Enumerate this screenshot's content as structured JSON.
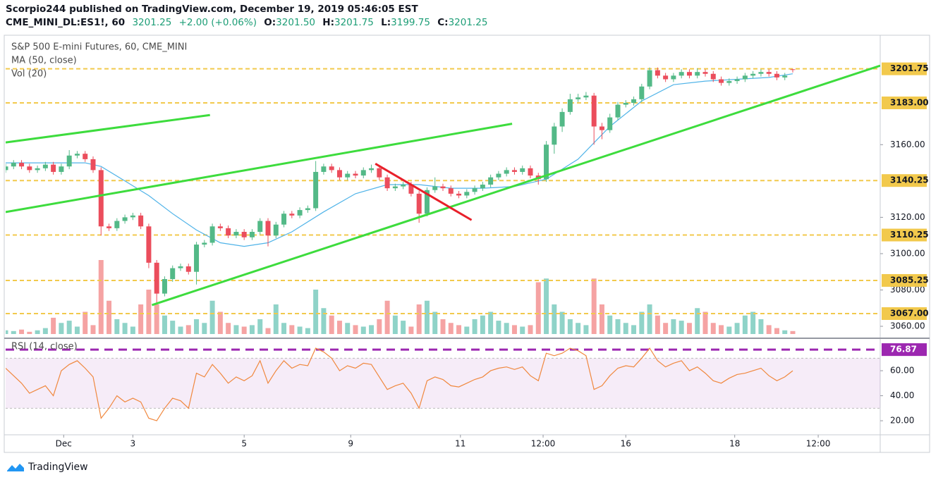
{
  "header": {
    "publisher": "Scorpio244 published on TradingView.com, December 19, 2019 05:46:05 EST",
    "symbol": "CME_MINI_DL:ES1!, 60",
    "last": "3201.25",
    "change": "+2.00 (+0.06%)",
    "ohlc": [
      {
        "label": "O:",
        "value": "3201.50"
      },
      {
        "label": "H:",
        "value": "3201.75"
      },
      {
        "label": "L:",
        "value": "3199.75"
      },
      {
        "label": "C:",
        "value": "3201.25"
      }
    ]
  },
  "footer": {
    "brand": "TradingView"
  },
  "chart_data": [
    {
      "type": "candlestick",
      "title": "S&P 500 E-mini Futures, 60, CME_MINI",
      "xlim": [
        0,
        110
      ],
      "ylim": [
        3054.2,
        3218.3
      ],
      "yticks": [
        {
          "value": 3060,
          "label": "3060.00"
        },
        {
          "value": 3080,
          "label": "3080.00"
        },
        {
          "value": 3100,
          "label": "3100.00"
        },
        {
          "value": 3120,
          "label": "3120.00"
        },
        {
          "value": 3160,
          "label": "3160.00"
        }
      ],
      "up_color": "#53b987",
      "down_color": "#eb4d5c",
      "open": [
        3146,
        3148,
        3150,
        3148,
        3146,
        3147,
        3149,
        3145,
        3148,
        3154,
        3155,
        3152,
        3146,
        3115,
        3114,
        3118,
        3120,
        3121,
        3115,
        3095,
        3078,
        3086,
        3092,
        3093,
        3090,
        3105,
        3106,
        3115,
        3114,
        3110,
        3112,
        3109,
        3112,
        3118,
        3110,
        3116,
        3122,
        3121,
        3124,
        3125,
        3145,
        3148,
        3146,
        3142,
        3144,
        3143,
        3146,
        3147,
        3142,
        3136,
        3137,
        3138,
        3133,
        3122,
        3135,
        3137,
        3136,
        3133,
        3132,
        3134,
        3136,
        3138,
        3142,
        3144,
        3146,
        3145,
        3147,
        3143,
        3141,
        3160,
        3170,
        3178,
        3185,
        3186,
        3187,
        3170,
        3168,
        3175,
        3182,
        3183,
        3185,
        3192,
        3201,
        3198,
        3196,
        3198,
        3200,
        3198,
        3200,
        3199,
        3196,
        3194,
        3195,
        3196,
        3198,
        3199,
        3200,
        3199,
        3197,
        3201.5
      ],
      "high": [
        3149.5,
        3151.5,
        3151.5,
        3149.5,
        3148.5,
        3150.5,
        3150.5,
        3149.5,
        3157,
        3156.5,
        3156.5,
        3153.5,
        3147.5,
        3116.5,
        3119.5,
        3121.5,
        3122.5,
        3122.5,
        3116.5,
        3096.5,
        3087.5,
        3093.5,
        3094.5,
        3094.5,
        3106.5,
        3107.5,
        3116.5,
        3116.5,
        3115.5,
        3113.5,
        3113.5,
        3113.5,
        3119.5,
        3119.5,
        3117.5,
        3123.5,
        3123.5,
        3125.5,
        3126.5,
        3151,
        3149.5,
        3149.5,
        3147.5,
        3145.5,
        3145.5,
        3147.5,
        3149,
        3148.5,
        3143.5,
        3138.5,
        3139.5,
        3139.5,
        3134.5,
        3136.5,
        3142,
        3138.5,
        3137.5,
        3134.5,
        3135.5,
        3137.5,
        3139.5,
        3143.5,
        3145.5,
        3147.5,
        3147.5,
        3148.5,
        3148.5,
        3144.5,
        3162,
        3172,
        3180,
        3188,
        3188,
        3189,
        3188.5,
        3172,
        3177,
        3183.5,
        3184.5,
        3186.5,
        3193.5,
        3202.5,
        3202.5,
        3199.5,
        3199.5,
        3201.5,
        3201.5,
        3202,
        3201.5,
        3200.5,
        3197.5,
        3196.5,
        3197.5,
        3199.5,
        3200.5,
        3201.5,
        3201.5,
        3200.5,
        3199.5,
        3201.75
      ],
      "low": [
        3144.5,
        3146.5,
        3146.5,
        3144.5,
        3144.5,
        3145.5,
        3143.5,
        3143.5,
        3146.5,
        3152.5,
        3150.5,
        3144.5,
        3110,
        3112.5,
        3112.5,
        3116.5,
        3118.5,
        3113.5,
        3092,
        3072,
        3076.5,
        3084.5,
        3090.5,
        3088.5,
        3083,
        3103.5,
        3104.5,
        3112.5,
        3108.5,
        3108.5,
        3107.5,
        3107.5,
        3110.5,
        3104,
        3108.5,
        3114.5,
        3119.5,
        3119.5,
        3122.5,
        3123.5,
        3143.5,
        3144.5,
        3140.5,
        3140.5,
        3141.5,
        3141.5,
        3144.5,
        3140.5,
        3134.5,
        3134.5,
        3135.5,
        3131.5,
        3117,
        3120.5,
        3133.5,
        3134.5,
        3131.5,
        3130.5,
        3130.5,
        3132.5,
        3134.5,
        3136.5,
        3140.5,
        3142.5,
        3143.5,
        3143.5,
        3141.5,
        3138,
        3139.5,
        3155,
        3167,
        3176.5,
        3183.5,
        3184.5,
        3160,
        3163,
        3166.5,
        3173.5,
        3180.5,
        3181.5,
        3183.5,
        3190.5,
        3196.5,
        3194.5,
        3194.5,
        3196.5,
        3196.5,
        3196.5,
        3197.5,
        3194.5,
        3192.5,
        3192.5,
        3193.5,
        3194.5,
        3196.5,
        3197.5,
        3197.5,
        3195.5,
        3195.5,
        3199.75
      ],
      "close": [
        3148,
        3150,
        3148,
        3146,
        3147,
        3149,
        3145,
        3148,
        3154,
        3155,
        3152,
        3146,
        3115,
        3114,
        3118,
        3120,
        3121,
        3115,
        3095,
        3078,
        3086,
        3092,
        3093,
        3090,
        3105,
        3106,
        3115,
        3114,
        3110,
        3112,
        3109,
        3112,
        3118,
        3110,
        3116,
        3122,
        3121,
        3124,
        3125,
        3145,
        3148,
        3146,
        3142,
        3144,
        3143,
        3146,
        3147,
        3142,
        3136,
        3137,
        3138,
        3133,
        3122,
        3135,
        3137,
        3136,
        3133,
        3132,
        3134,
        3136,
        3138,
        3142,
        3144,
        3146,
        3145,
        3147,
        3143,
        3141,
        3160,
        3170,
        3178,
        3185,
        3186,
        3187,
        3170,
        3168,
        3175,
        3182,
        3183,
        3185,
        3192,
        3201,
        3198,
        3196,
        3198,
        3200,
        3198,
        3200,
        3199,
        3196,
        3194,
        3195,
        3196,
        3198,
        3199,
        3200,
        3199,
        3197,
        3198,
        3201.25
      ],
      "ma": {
        "name": "MA (50, close)",
        "color": "#4fb3e8",
        "x": [
          0,
          10,
          12,
          15,
          18,
          21,
          24,
          27,
          30,
          33,
          36,
          40,
          44,
          48,
          52,
          56,
          60,
          64,
          68,
          72,
          76,
          80,
          84,
          88,
          92,
          96,
          99
        ],
        "values": [
          3150,
          3150,
          3148,
          3140,
          3132,
          3122,
          3113,
          3106,
          3104,
          3106,
          3112,
          3123,
          3133,
          3138,
          3138,
          3136,
          3136,
          3137,
          3141,
          3152,
          3170,
          3184,
          3193,
          3195,
          3196,
          3197,
          3199
        ]
      },
      "volume": {
        "name": "Vol (20)",
        "vlim": [
          0,
          100
        ],
        "up_color": "#8fd3c8",
        "down_color": "#f5a3a3",
        "values": [
          5,
          4,
          6,
          3,
          5,
          8,
          22,
          15,
          18,
          10,
          30,
          12,
          100,
          45,
          20,
          15,
          10,
          40,
          60,
          40,
          25,
          18,
          10,
          12,
          20,
          15,
          45,
          30,
          15,
          12,
          10,
          12,
          20,
          8,
          40,
          15,
          12,
          10,
          8,
          60,
          35,
          25,
          18,
          15,
          12,
          10,
          12,
          20,
          45,
          25,
          18,
          10,
          40,
          45,
          30,
          20,
          15,
          12,
          10,
          20,
          25,
          30,
          18,
          15,
          12,
          10,
          12,
          70,
          75,
          40,
          30,
          20,
          15,
          12,
          75,
          40,
          25,
          20,
          15,
          12,
          30,
          40,
          25,
          15,
          20,
          18,
          15,
          35,
          30,
          15,
          12,
          10,
          15,
          25,
          30,
          20,
          12,
          8,
          5,
          4
        ]
      },
      "level_color": "#f2c94c",
      "levels": [
        {
          "value": 3201.75,
          "label": "3201.75"
        },
        {
          "value": 3183,
          "label": "3183.00"
        },
        {
          "value": 3140.25,
          "label": "3140.25"
        },
        {
          "value": 3110.25,
          "label": "3110.25"
        },
        {
          "value": 3085.25,
          "label": "3085.25"
        },
        {
          "value": 3067,
          "label": "3067.00"
        }
      ],
      "trendlines": [
        {
          "color": "#3ddc3d",
          "x": [
            0,
            25.7
          ],
          "y": [
            3161.2,
            3176.3
          ]
        },
        {
          "color": "#3ddc3d",
          "x": [
            0,
            63.7
          ],
          "y": [
            3122.9,
            3171.5
          ]
        },
        {
          "color": "#3ddc3d",
          "x": [
            18.4,
            110
          ],
          "y": [
            3071.7,
            3203.5
          ]
        },
        {
          "color": "#e8202a",
          "x": [
            46.5,
            58.6
          ],
          "y": [
            3149.5,
            3118.5
          ]
        }
      ]
    },
    {
      "type": "line",
      "title": "RSI (14, close)",
      "color": "#f0883e",
      "xlim": [
        0,
        110
      ],
      "ylim": [
        9.9,
        83.7
      ],
      "xticks": [
        {
          "value": 7.3,
          "label": "Dec"
        },
        {
          "value": 16,
          "label": "3"
        },
        {
          "value": 30,
          "label": "5"
        },
        {
          "value": 43.4,
          "label": "9"
        },
        {
          "value": 57.2,
          "label": "11"
        },
        {
          "value": 67.6,
          "label": "12:00"
        },
        {
          "value": 78,
          "label": "16"
        },
        {
          "value": 91.7,
          "label": "18"
        },
        {
          "value": 102.2,
          "label": "12:00"
        }
      ],
      "yticks": [
        {
          "value": 20,
          "label": "20.00"
        },
        {
          "value": 40,
          "label": "40.00"
        },
        {
          "value": 60,
          "label": "60.00"
        }
      ],
      "band": [
        30,
        70
      ],
      "band_color": "#9c27b0",
      "level": {
        "value": 76.87,
        "label": "76.87"
      },
      "level_color": "#9c27b0",
      "values": [
        62,
        56,
        50,
        42,
        45,
        48,
        40,
        60,
        65,
        68,
        62,
        55,
        22,
        30,
        40,
        35,
        38,
        35,
        22,
        20,
        30,
        38,
        36,
        30,
        58,
        55,
        65,
        58,
        50,
        55,
        52,
        56,
        68,
        50,
        60,
        68,
        62,
        65,
        64,
        78,
        75,
        70,
        60,
        64,
        62,
        66,
        65,
        55,
        45,
        48,
        50,
        42,
        30,
        52,
        55,
        53,
        48,
        47,
        50,
        53,
        55,
        60,
        62,
        63,
        61,
        63,
        56,
        52,
        74,
        72,
        74,
        78,
        76,
        72,
        45,
        48,
        56,
        62,
        64,
        63,
        70,
        78,
        68,
        63,
        66,
        68,
        60,
        63,
        58,
        52,
        50,
        54,
        57,
        58,
        60,
        62,
        56,
        52,
        55,
        60
      ]
    }
  ]
}
